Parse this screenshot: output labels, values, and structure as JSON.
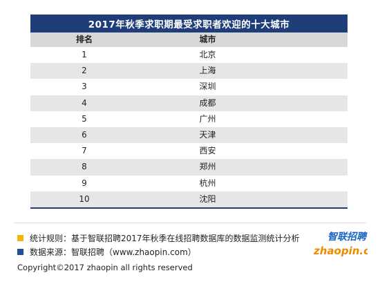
{
  "title": "2017年秋季求职期最受求职者欢迎的十大城市",
  "table": {
    "headers": {
      "rank": "排名",
      "city": "城市"
    },
    "rows": [
      {
        "rank": "1",
        "city": "北京"
      },
      {
        "rank": "2",
        "city": "上海"
      },
      {
        "rank": "3",
        "city": "深圳"
      },
      {
        "rank": "4",
        "city": "成都"
      },
      {
        "rank": "5",
        "city": "广州"
      },
      {
        "rank": "6",
        "city": "天津"
      },
      {
        "rank": "7",
        "city": "西安"
      },
      {
        "rank": "8",
        "city": "郑州"
      },
      {
        "rank": "9",
        "city": "杭州"
      },
      {
        "rank": "10",
        "city": "沈阳"
      }
    ]
  },
  "notes": {
    "stat_rule": "统计规则：基于智联招聘2017年秋季在线招聘数据库的数据监测统计分析",
    "source": "数据来源：智联招聘（www.zhaopin.com）"
  },
  "logo": {
    "text_cn": "智联招聘",
    "text_en": "zhaopin.com",
    "icon": "zhaopin-logo"
  },
  "copyright": "Copyright©2017 zhaopin all rights reserved",
  "colors": {
    "title_bg": "#1f3e79",
    "header_bg": "#d8d8d8",
    "stripe": "#e6e6e6",
    "bullet_yellow": "#f2b705",
    "bullet_blue": "#1f4e9b",
    "logo_orange": "#f08a00",
    "logo_blue": "#1a64c4"
  }
}
